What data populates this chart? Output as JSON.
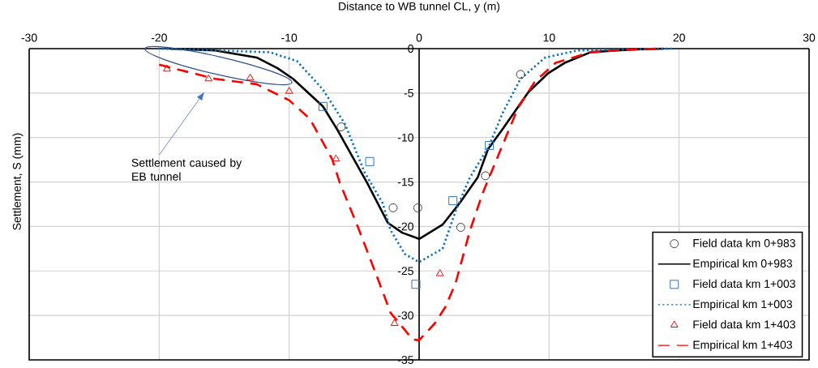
{
  "chart_data": {
    "type": "line",
    "xlabel": "Distance to WB tunnel  CL, y (m)",
    "ylabel": "Settlement, S (mm)",
    "xlim": [
      -30,
      30
    ],
    "xticks": [
      -30,
      -20,
      -10,
      0,
      10,
      20,
      30
    ],
    "ylim": [
      -35,
      0
    ],
    "yticks": [
      0,
      -5,
      -10,
      -15,
      -20,
      -25,
      -30,
      -35
    ],
    "grid": true,
    "legend": "bottom right",
    "annotations": [
      "Settlement caused by EB tunnel"
    ],
    "series": [
      {
        "name": "Field data km 0+983",
        "type": "scatter",
        "marker": "circle",
        "color": "#404040",
        "x": [
          -6.0,
          -2.0,
          -0.1,
          3.2,
          5.1,
          7.8
        ],
        "values": [
          -8.8,
          -17.9,
          -17.9,
          -20.1,
          -14.3,
          -2.9
        ]
      },
      {
        "name": "Empirical km 0+983",
        "line_style": "solid",
        "color": "#000000",
        "x": [
          -19.2,
          -15.7,
          -12.5,
          -10.9,
          -9.7,
          -7.4,
          -6.3,
          -4.0,
          -2.4,
          -1.3,
          0,
          1.8,
          3.1,
          4.5,
          5.3,
          6.4,
          8.4,
          9.9,
          11.2,
          13.2,
          16.3,
          18.8
        ],
        "values": [
          0,
          -0.2,
          -1.0,
          -2.2,
          -3.4,
          -6.5,
          -9.1,
          -15.1,
          -19.6,
          -20.7,
          -21.4,
          -19.8,
          -17.4,
          -14.5,
          -11.3,
          -9.1,
          -4.9,
          -2.8,
          -1.6,
          -0.4,
          -0.1,
          0
        ]
      },
      {
        "name": "Field data km 1+003",
        "type": "scatter",
        "marker": "square",
        "color": "#2e75b6",
        "x": [
          -7.4,
          -3.8,
          -0.25,
          2.6,
          5.4
        ],
        "values": [
          -6.5,
          -12.7,
          -26.5,
          -17.1,
          -10.9
        ]
      },
      {
        "name": "Empirical km 1+003",
        "line_style": "dotted",
        "color": "#0070c0",
        "x": [
          -20.1,
          -11.5,
          -9.4,
          -7.4,
          -5.7,
          -4.2,
          -2.8,
          -2.2,
          -1.1,
          0,
          1.8,
          2.8,
          3.9,
          5.4,
          6.4,
          7.8,
          9.7,
          12.2,
          19.5
        ],
        "values": [
          0,
          -0.4,
          -1.4,
          -4.6,
          -8.5,
          -13.9,
          -17.4,
          -20.4,
          -23.1,
          -24.0,
          -22.5,
          -18.3,
          -14.5,
          -10.9,
          -7.3,
          -3.4,
          -1.0,
          -0.2,
          0
        ]
      },
      {
        "name": "Field data km 1+403",
        "type": "scatter",
        "marker": "triangle",
        "color": "#ff0000",
        "x": [
          -19.4,
          -16.2,
          -13.0,
          -10.0,
          -6.4,
          -1.9,
          1.6
        ],
        "values": [
          -2.3,
          -3.4,
          -3.3,
          -4.8,
          -12.4,
          -30.9,
          -25.3
        ]
      },
      {
        "name": "Empirical km 1+403",
        "line_style": "dashed",
        "color": "#ff0000",
        "x": [
          -20.0,
          -15.7,
          -12.5,
          -10.0,
          -8.4,
          -6.7,
          -6.1,
          -4.7,
          -3.2,
          -2.2,
          -0.5,
          0,
          1.2,
          2.0,
          2.8,
          3.9,
          4.9,
          6.4,
          7.6,
          8.9,
          10.5,
          13.2,
          16.3,
          18.4
        ],
        "values": [
          -1.8,
          -3.4,
          -4.0,
          -5.8,
          -7.9,
          -12.4,
          -15.1,
          -20.1,
          -25.8,
          -29.7,
          -32.7,
          -32.8,
          -30.9,
          -29.1,
          -26.4,
          -20.5,
          -16.2,
          -10.9,
          -6.7,
          -3.7,
          -1.6,
          -0.4,
          -0.1,
          0
        ]
      }
    ]
  }
}
